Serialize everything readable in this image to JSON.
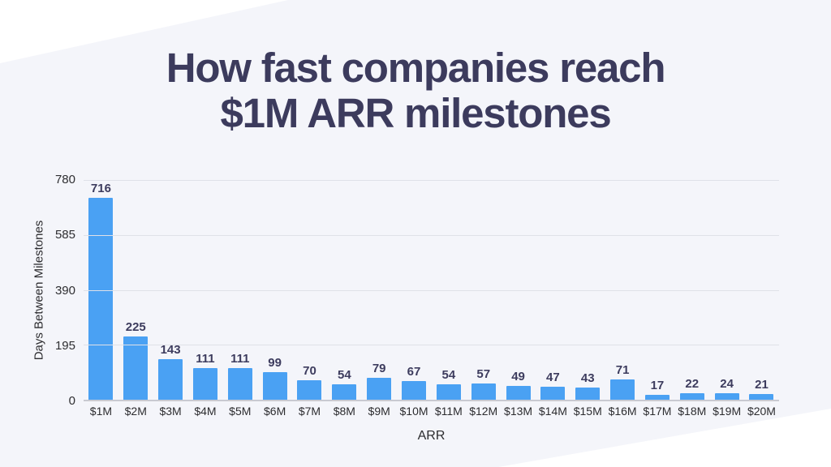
{
  "title": {
    "line1": "How fast companies reach",
    "line2": "$1M ARR milestones"
  },
  "chart_data": {
    "type": "bar",
    "title": "How fast companies reach $1M ARR milestones",
    "categories": [
      "$1M",
      "$2M",
      "$3M",
      "$4M",
      "$5M",
      "$6M",
      "$7M",
      "$8M",
      "$9M",
      "$10M",
      "$11M",
      "$12M",
      "$13M",
      "$14M",
      "$15M",
      "$16M",
      "$17M",
      "$18M",
      "$19M",
      "$20M"
    ],
    "values": [
      716,
      225,
      143,
      111,
      111,
      99,
      70,
      54,
      79,
      67,
      54,
      57,
      49,
      47,
      43,
      71,
      17,
      22,
      24,
      21
    ],
    "xlabel": "ARR",
    "ylabel": "Days Between Milestones",
    "ylim": [
      0,
      780
    ],
    "yticks": [
      0,
      195,
      390,
      585,
      780
    ],
    "grid": true,
    "legend": false,
    "bar_color": "#4aa1f3",
    "value_label_color": "#3d3c5e",
    "title_color": "#3c3b5d",
    "background_color": "#f4f5fa",
    "accent_wedge_color": "#ffffff"
  }
}
